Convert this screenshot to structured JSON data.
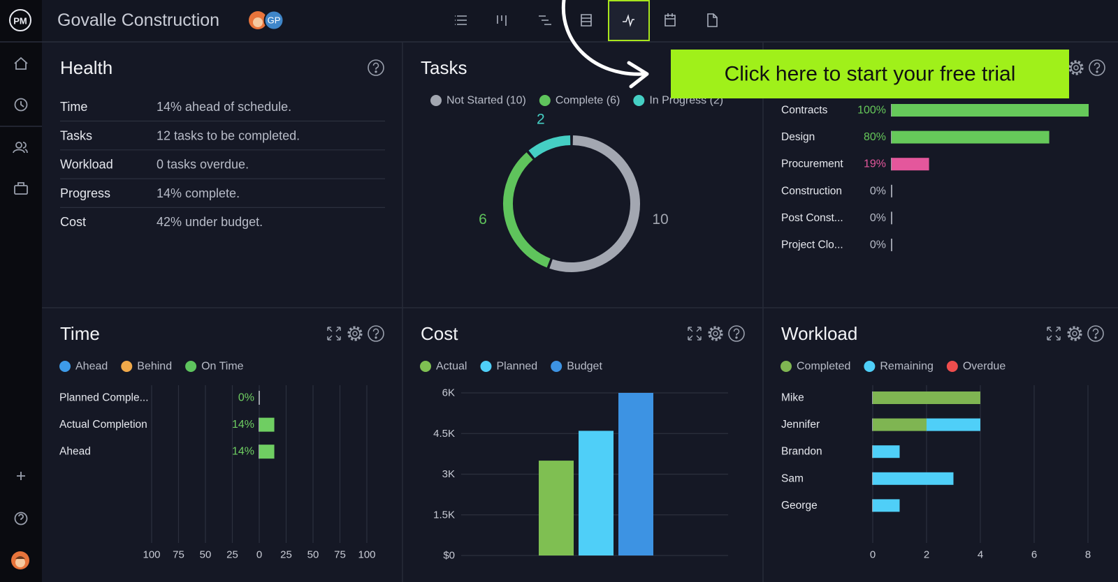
{
  "header": {
    "logo": "PM",
    "project": "Govalle Construction",
    "avatar": "GP"
  },
  "cta": {
    "text": "Click here to start your free trial"
  },
  "health": {
    "title": "Health",
    "rows": [
      [
        "Time",
        "14% ahead of schedule."
      ],
      [
        "Tasks",
        "12 tasks to be completed."
      ],
      [
        "Workload",
        "0 tasks overdue."
      ],
      [
        "Progress",
        "14% complete."
      ],
      [
        "Cost",
        "42% under budget."
      ]
    ]
  },
  "chart_data": [
    {
      "type": "pie",
      "title": "Tasks",
      "donut": true,
      "categories": [
        "Not Started (10)",
        "Complete (6)",
        "In Progress (2)"
      ],
      "values": [
        10,
        6,
        2
      ],
      "colors": [
        "#a3a7b1",
        "#5fc45c",
        "#45cfc4"
      ]
    },
    {
      "type": "bar",
      "orientation": "horizontal",
      "categories": [
        "Contracts",
        "Design",
        "Procurement",
        "Construction",
        "Post Const...",
        "Project Clo..."
      ],
      "values": [
        100,
        80,
        19,
        0,
        0,
        0
      ],
      "value_labels": [
        "100%",
        "80%",
        "19%",
        "0%",
        "0%",
        "0%"
      ],
      "colors": [
        "#66c95a",
        "#66c95a",
        "#e4579c",
        "#b8bcc8",
        "#b8bcc8",
        "#b8bcc8"
      ],
      "xlim": [
        0,
        100
      ]
    },
    {
      "type": "bar",
      "orientation": "horizontal",
      "title": "Time",
      "legend": [
        {
          "name": "Ahead",
          "color": "#3d9be9"
        },
        {
          "name": "Behind",
          "color": "#f0a94a"
        },
        {
          "name": "On Time",
          "color": "#5ec45e"
        }
      ],
      "categories": [
        "Planned Comple...",
        "Actual Completion",
        "Ahead"
      ],
      "values": [
        0,
        14,
        14
      ],
      "value_labels": [
        "0%",
        "14%",
        "14%"
      ],
      "color": "#6fce62",
      "xlim": [
        -100,
        100
      ],
      "xticks": [
        {
          "value": -100,
          "label": "100"
        },
        {
          "value": -75,
          "label": "75"
        },
        {
          "value": -50,
          "label": "50"
        },
        {
          "value": -25,
          "label": "25"
        },
        0,
        25,
        50,
        75,
        100
      ],
      "grid": true
    },
    {
      "type": "bar",
      "orientation": "vertical",
      "title": "Cost",
      "series": [
        {
          "name": "Actual",
          "color": "#7fbf52",
          "values": [
            3500
          ]
        },
        {
          "name": "Planned",
          "color": "#4fcff8",
          "values": [
            4600
          ]
        },
        {
          "name": "Budget",
          "color": "#3d93e3",
          "values": [
            6000
          ]
        }
      ],
      "ylim": [
        0,
        6000
      ],
      "yticks": [
        {
          "value": 0,
          "label": "$0"
        },
        {
          "value": 1500,
          "label": "1.5K"
        },
        {
          "value": 3000,
          "label": "3K"
        },
        {
          "value": 4500,
          "label": "4.5K"
        },
        {
          "value": 6000,
          "label": "6K"
        }
      ],
      "grid": true
    },
    {
      "type": "bar",
      "orientation": "horizontal",
      "stacked": true,
      "title": "Workload",
      "categories": [
        "Mike",
        "Jennifer",
        "Brandon",
        "Sam",
        "George"
      ],
      "series": [
        {
          "name": "Completed",
          "color": "#7fb552",
          "values": [
            4,
            2,
            0,
            0,
            0
          ]
        },
        {
          "name": "Remaining",
          "color": "#4fcff8",
          "values": [
            0,
            2,
            1,
            3,
            1
          ]
        },
        {
          "name": "Overdue",
          "color": "#ef4d4d",
          "values": [
            0,
            0,
            0,
            0,
            0
          ]
        }
      ],
      "xlim": [
        0,
        8
      ],
      "xticks": [
        0,
        2,
        4,
        6,
        8
      ],
      "grid": true
    }
  ]
}
